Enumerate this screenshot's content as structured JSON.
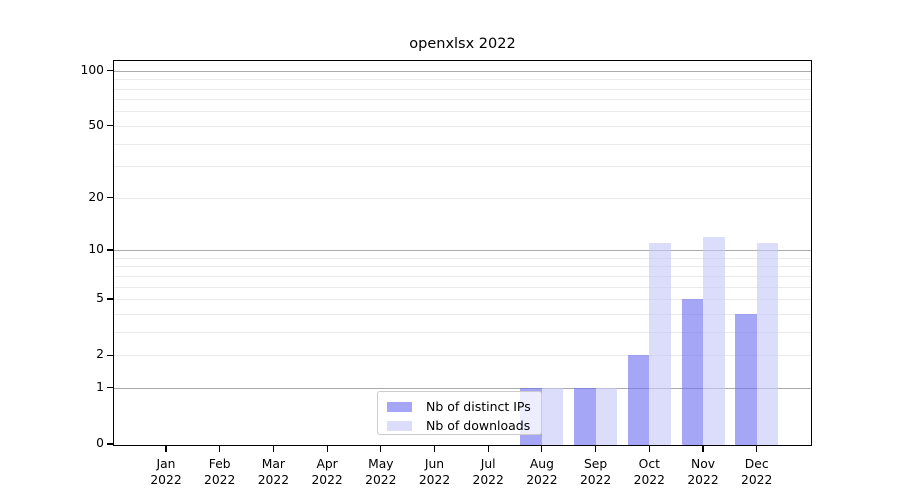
{
  "chart_data": {
    "type": "bar",
    "title": "openxlsx 2022",
    "categories": [
      "Jan 2022",
      "Feb 2022",
      "Mar 2022",
      "Apr 2022",
      "May 2022",
      "Jun 2022",
      "Jul 2022",
      "Aug 2022",
      "Sep 2022",
      "Oct 2022",
      "Nov 2022",
      "Dec 2022"
    ],
    "series": [
      {
        "name": "Nb of distinct IPs",
        "values": [
          0,
          0,
          0,
          0,
          0,
          0,
          0,
          1,
          1,
          2,
          5,
          4
        ],
        "color": "rgba(112,112,242,0.62)"
      },
      {
        "name": "Nb of downloads",
        "values": [
          0,
          0,
          0,
          0,
          0,
          0,
          0,
          1,
          1,
          11,
          12,
          11
        ],
        "color": "rgba(198,198,248,0.62)"
      }
    ],
    "xlabel": "",
    "ylabel": "",
    "y_scale": "log1p",
    "ylim": [
      0,
      113
    ],
    "y_ticks": [
      100,
      50,
      20,
      10,
      5,
      2,
      1,
      0
    ],
    "y_tick_labels": [
      "100",
      "50",
      "20",
      "10",
      "5",
      "2",
      "1",
      "0"
    ],
    "major_gridlines": [
      1,
      10,
      100
    ],
    "minor_gridlines": [
      2,
      3,
      4,
      5,
      6,
      7,
      8,
      9,
      20,
      30,
      40,
      50,
      60,
      70,
      80,
      90
    ],
    "grid": true,
    "legend_position": "lower center",
    "colors": {
      "major_grid": "#ababab",
      "minor_grid": "#eaeaea",
      "axis": "#000000",
      "background": "#ffffff"
    }
  }
}
